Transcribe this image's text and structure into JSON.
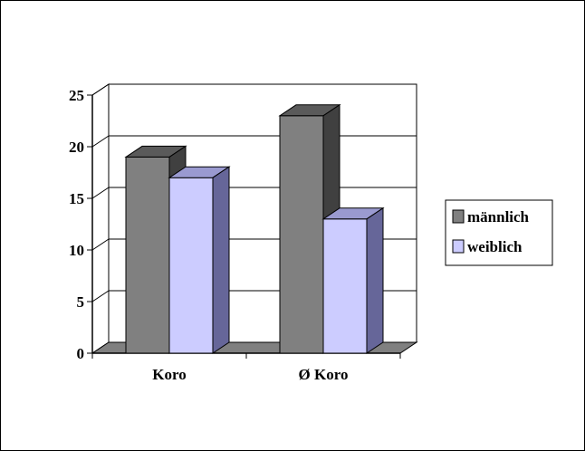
{
  "chart_data": {
    "type": "bar",
    "categories": [
      "Koro",
      "Ø Koro"
    ],
    "series": [
      {
        "name": "männlich",
        "values": [
          19,
          23
        ],
        "front": "#808080",
        "top": "#5a5a5a",
        "side": "#404040"
      },
      {
        "name": "weiblich",
        "values": [
          17,
          13
        ],
        "front": "#ccccff",
        "top": "#9a9ad0",
        "side": "#666699"
      }
    ],
    "ylim": [
      0,
      25
    ],
    "yticks": [
      "0",
      "5",
      "10",
      "15",
      "20",
      "25"
    ],
    "grid": true,
    "legend_position": "right",
    "title": "",
    "xlabel": "",
    "ylabel": ""
  }
}
